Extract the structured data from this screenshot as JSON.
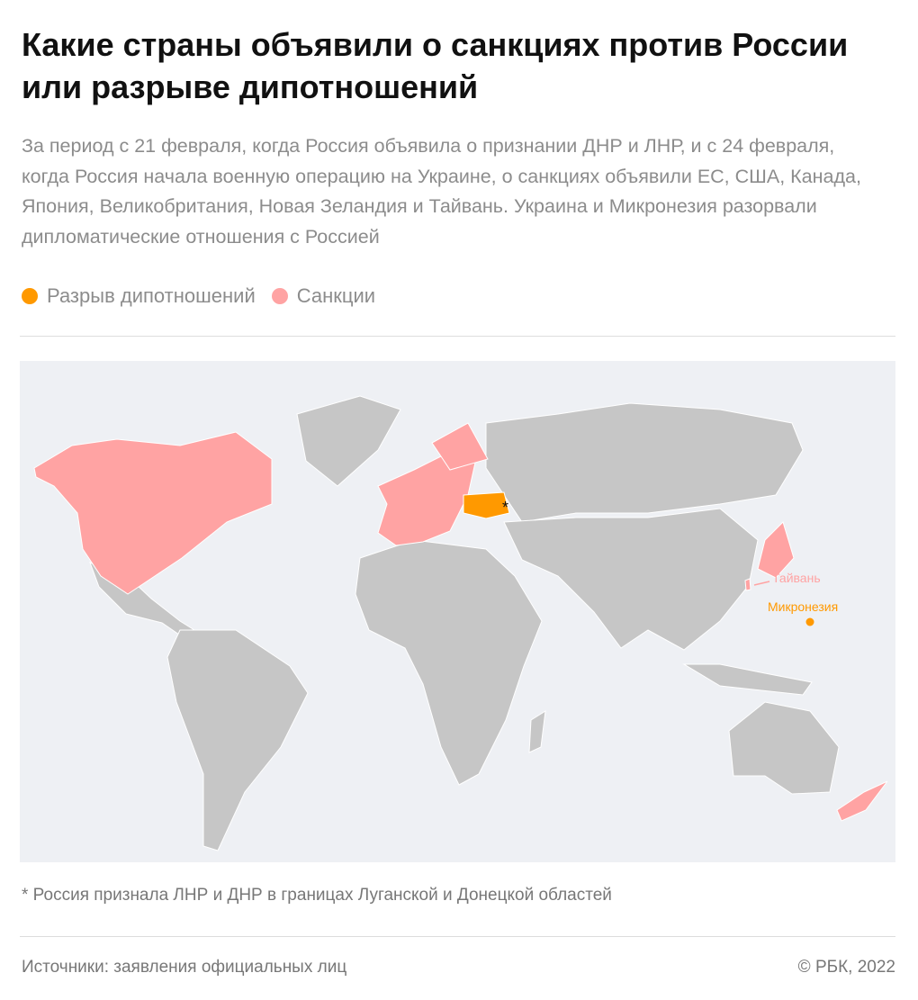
{
  "header": {
    "title": "Какие страны объявили о санкциях против России или разрыве дипотношений",
    "subtitle": "За период с 21 февраля, когда Россия объявила о признании ДНР и ЛНР, и с 24 февраля, когда Россия начала военную операцию на Украине, о санкциях объявили ЕС, США, Канада, Япония, Великобритания, Новая Зеландия и Тайвань. Украина и Микронезия разорвали дипломатические отношения с Россией"
  },
  "legend": [
    {
      "label": "Разрыв дипотношений",
      "color": "#ff9900"
    },
    {
      "label": "Санкции",
      "color": "#ffa3a3"
    }
  ],
  "map": {
    "labels": {
      "taiwan": "Тайвань",
      "micronesia": "Микронезия",
      "asterisk": "*"
    }
  },
  "footnote": "* Россия признала ЛНР и ДНР в границах Луганской и Донецкой областей",
  "footer": {
    "source": "Источники: заявления официальных лиц",
    "copyright": "© РБК, 2022"
  }
}
